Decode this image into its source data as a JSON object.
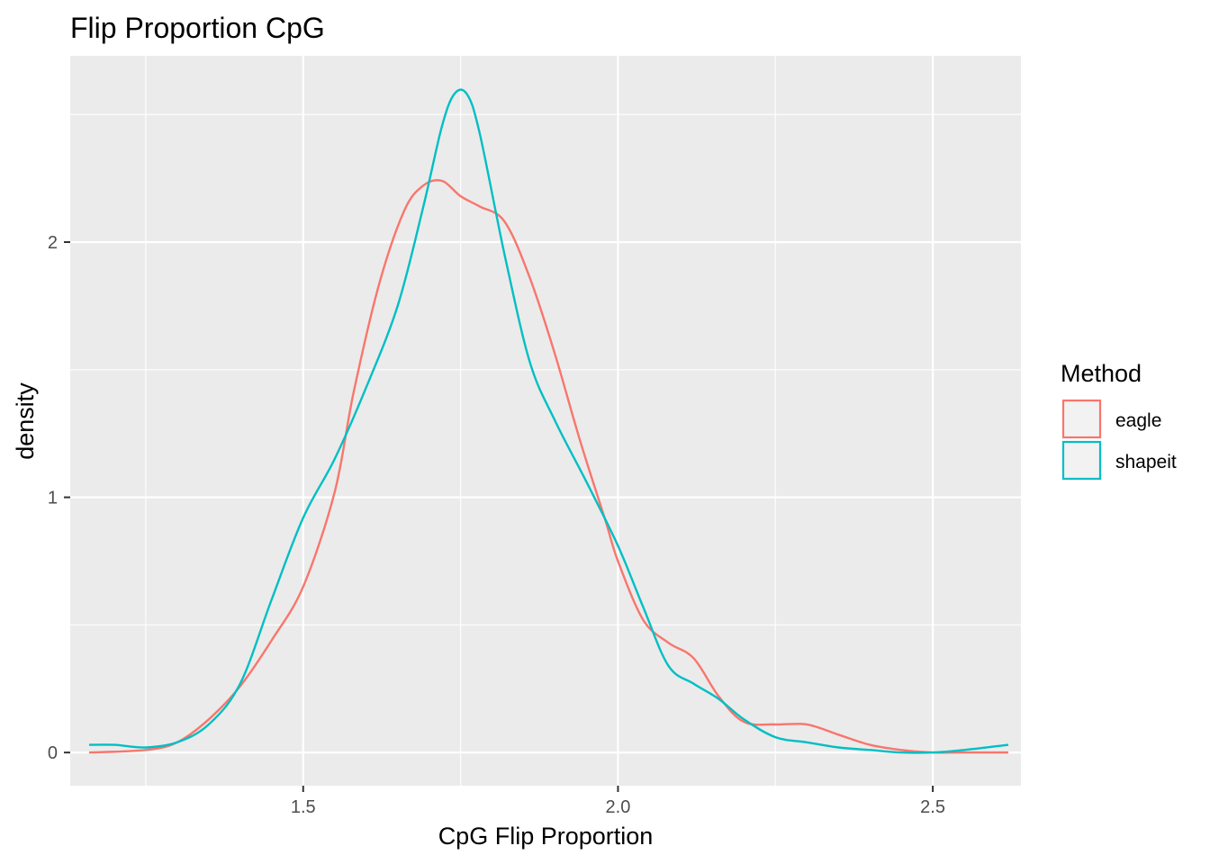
{
  "chart_data": {
    "type": "line",
    "title": "Flip Proportion CpG",
    "xlabel": "CpG Flip Proportion",
    "ylabel": "density",
    "xlim": [
      1.13,
      2.64
    ],
    "ylim": [
      -0.13,
      2.73
    ],
    "x_ticks": [
      1.5,
      2.0,
      2.5
    ],
    "x_tick_labels": [
      "1.5",
      "2.0",
      "2.5"
    ],
    "y_ticks": [
      0,
      1,
      2
    ],
    "y_tick_labels": [
      "0",
      "1",
      "2"
    ],
    "x_minor": [
      1.25,
      1.75,
      2.25
    ],
    "y_minor": [
      0.5,
      1.5,
      2.5
    ],
    "grid": true,
    "panel_background": "#ebebeb",
    "legend": {
      "title": "Method",
      "position": "right"
    },
    "series": [
      {
        "name": "eagle",
        "color": "#f8766d",
        "x": [
          1.16,
          1.25,
          1.3,
          1.35,
          1.4,
          1.45,
          1.5,
          1.55,
          1.58,
          1.62,
          1.66,
          1.69,
          1.72,
          1.75,
          1.78,
          1.82,
          1.86,
          1.9,
          1.94,
          1.98,
          2.0,
          2.04,
          2.08,
          2.12,
          2.16,
          2.2,
          2.25,
          2.3,
          2.35,
          2.4,
          2.45,
          2.5,
          2.55,
          2.62
        ],
        "y": [
          0.0,
          0.01,
          0.04,
          0.13,
          0.26,
          0.44,
          0.65,
          1.02,
          1.41,
          1.83,
          2.12,
          2.22,
          2.24,
          2.18,
          2.14,
          2.08,
          1.86,
          1.56,
          1.22,
          0.91,
          0.75,
          0.52,
          0.43,
          0.37,
          0.22,
          0.12,
          0.11,
          0.11,
          0.07,
          0.03,
          0.01,
          0.0,
          0.0,
          0.0
        ]
      },
      {
        "name": "shapeit",
        "color": "#00bfc4",
        "x": [
          1.16,
          1.2,
          1.25,
          1.3,
          1.35,
          1.4,
          1.45,
          1.5,
          1.55,
          1.6,
          1.65,
          1.69,
          1.72,
          1.74,
          1.76,
          1.78,
          1.82,
          1.86,
          1.9,
          1.95,
          2.0,
          2.04,
          2.08,
          2.12,
          2.16,
          2.2,
          2.25,
          2.3,
          2.35,
          2.4,
          2.45,
          2.5,
          2.55,
          2.62
        ],
        "y": [
          0.03,
          0.03,
          0.02,
          0.04,
          0.11,
          0.27,
          0.6,
          0.92,
          1.15,
          1.43,
          1.75,
          2.13,
          2.45,
          2.58,
          2.58,
          2.43,
          1.95,
          1.53,
          1.3,
          1.06,
          0.81,
          0.57,
          0.34,
          0.27,
          0.21,
          0.13,
          0.06,
          0.04,
          0.02,
          0.01,
          0.0,
          0.0,
          0.01,
          0.03
        ]
      }
    ]
  }
}
